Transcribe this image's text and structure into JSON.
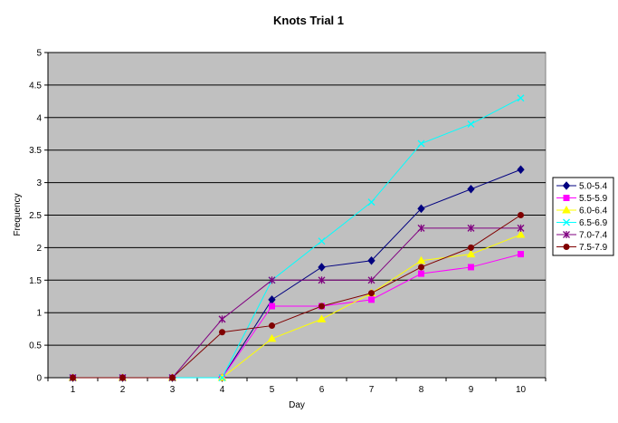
{
  "chart_data": {
    "type": "line",
    "title": "Knots Trial 1",
    "xlabel": "Day",
    "ylabel": "Frequency",
    "x": [
      1,
      2,
      3,
      4,
      5,
      6,
      7,
      8,
      9,
      10
    ],
    "ylim": [
      0,
      5
    ],
    "yticks": [
      "0",
      "0.5",
      "1",
      "1.5",
      "2",
      "2.5",
      "3",
      "3.5",
      "4",
      "4.5",
      "5"
    ],
    "grid": true,
    "legend": "right",
    "plot_background": "#c0c0c0",
    "series": [
      {
        "name": "5.0-5.4",
        "color": "#000080",
        "marker": "diamond",
        "values": [
          0,
          0,
          0,
          0,
          1.2,
          1.7,
          1.8,
          2.6,
          2.9,
          3.2
        ]
      },
      {
        "name": "5.5-5.9",
        "color": "#ff00ff",
        "marker": "square",
        "values": [
          0,
          0,
          0,
          0,
          1.1,
          1.1,
          1.2,
          1.6,
          1.7,
          1.9
        ]
      },
      {
        "name": "6.0-6.4",
        "color": "#ffff00",
        "marker": "triangle",
        "values": [
          0,
          0,
          0,
          0,
          0.6,
          0.9,
          1.3,
          1.8,
          1.9,
          2.2
        ]
      },
      {
        "name": "6.5-6.9",
        "color": "#00ffff",
        "marker": "x",
        "values": [
          0,
          0,
          0,
          0,
          1.5,
          2.1,
          2.7,
          3.6,
          3.9,
          4.3
        ]
      },
      {
        "name": "7.0-7.4",
        "color": "#800080",
        "marker": "star",
        "values": [
          0,
          0,
          0,
          0.9,
          1.5,
          1.5,
          1.5,
          2.3,
          2.3,
          2.3
        ]
      },
      {
        "name": "7.5-7.9",
        "color": "#800000",
        "marker": "circle",
        "values": [
          0,
          0,
          0,
          0.7,
          0.8,
          1.1,
          1.3,
          1.7,
          2.0,
          2.5
        ]
      }
    ]
  }
}
